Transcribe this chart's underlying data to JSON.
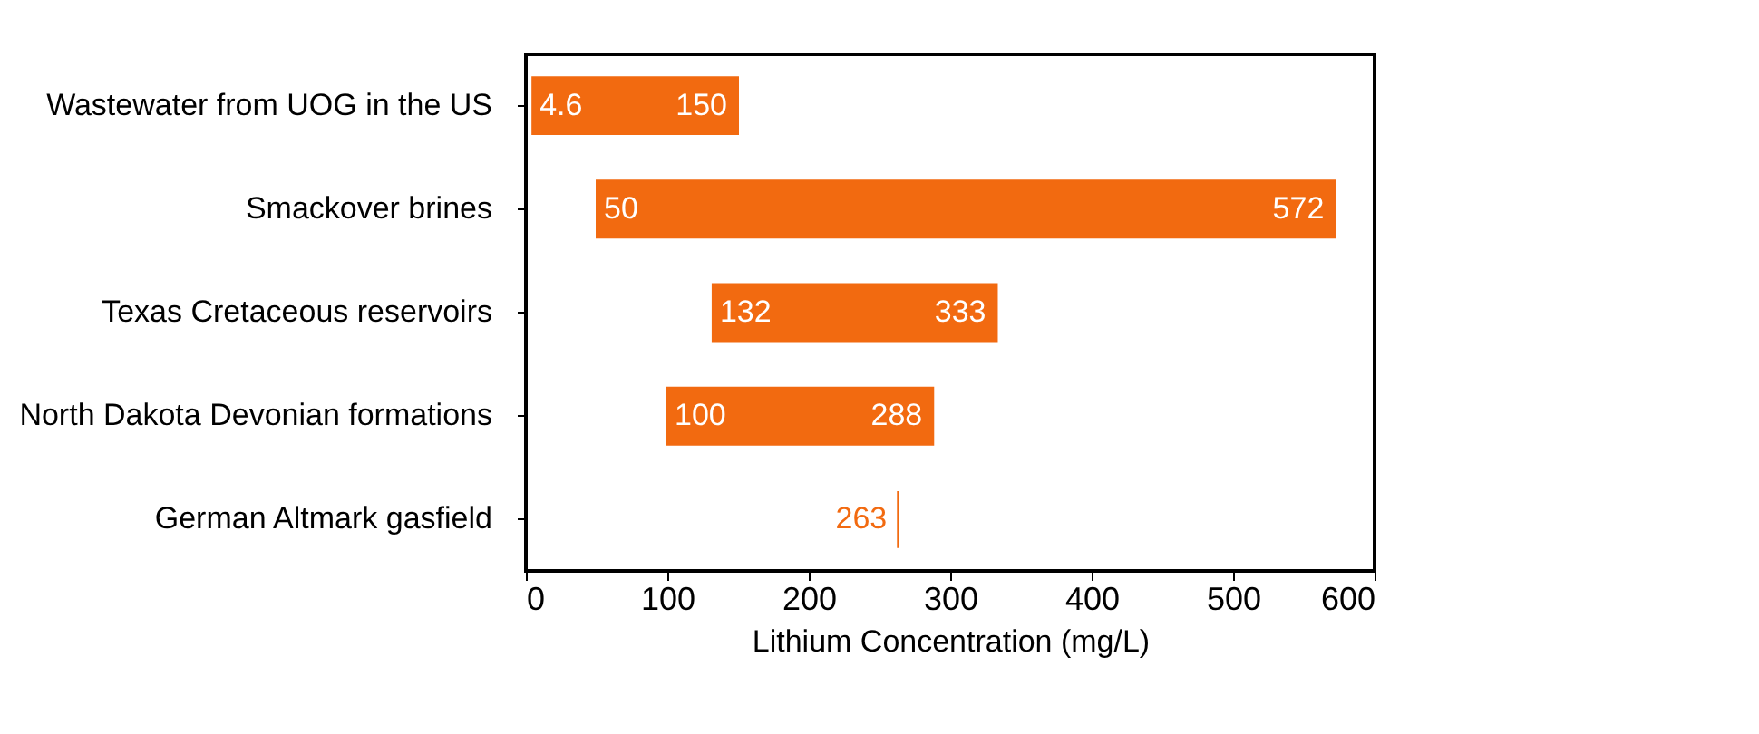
{
  "chart_data": {
    "type": "bar",
    "orientation": "horizontal",
    "xlabel": "Lithium Concentration (mg/L)",
    "categories": [
      "Wastewater from UOG in the US",
      "Smackover brines",
      "Texas Cretaceous reservoirs",
      "North Dakota Devonian formations",
      "German Altmark gasfield"
    ],
    "base": [
      4.6,
      50,
      132,
      100,
      263
    ],
    "values": [
      145.4,
      522,
      201,
      188,
      0
    ],
    "color": "#f26a10",
    "xlim": [
      0,
      600
    ],
    "xticks": [
      0,
      100,
      200,
      300,
      400,
      500,
      600
    ],
    "grid": false,
    "annotations": [
      {
        "text": "4.6",
        "x": 4.6,
        "y": "Wastewater from UOG in the US"
      },
      {
        "text": "150",
        "x": 150,
        "y": "Wastewater from UOG in the US"
      },
      {
        "text": "50",
        "x": 50,
        "y": "Smackover brines"
      },
      {
        "text": "572",
        "x": 572,
        "y": "Smackover brines"
      },
      {
        "text": "132",
        "x": 132,
        "y": "Texas Cretaceous reservoirs"
      },
      {
        "text": "333",
        "x": 333,
        "y": "Texas Cretaceous reservoirs"
      },
      {
        "text": "100",
        "x": 100,
        "y": "North Dakota Devonian formations"
      },
      {
        "text": "288",
        "x": 288,
        "y": "North Dakota Devonian formations"
      },
      {
        "text": "263",
        "x": 263,
        "y": "German Altmark gasfield"
      }
    ]
  }
}
